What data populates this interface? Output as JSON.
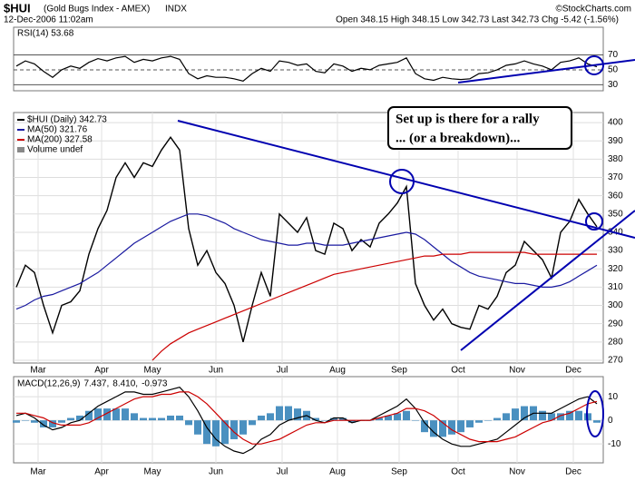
{
  "header": {
    "symbol": "$HUI",
    "name": "(Gold Bugs Index - AMEX)",
    "exchange": "INDX",
    "credit": "©StockCharts.com",
    "date": "12-Dec-2006 11:02am",
    "quote": "Open 348.15  High 348.15  Low 342.73  Last 342.73  Chg -5.42 (-1.56%)"
  },
  "annotation": {
    "line1": "Set up is there for a rally",
    "line2": "... (or a breakdown)..."
  },
  "chart_data": [
    {
      "type": "line",
      "title": "RSI(14) 53.68",
      "ylim": [
        22,
        107
      ],
      "yticks": [
        30,
        50,
        70
      ],
      "grid": true,
      "series": [
        {
          "color": "#000000",
          "values": [
            55,
            62,
            58,
            48,
            40,
            50,
            55,
            52,
            60,
            65,
            62,
            66,
            68,
            60,
            64,
            62,
            66,
            68,
            64,
            45,
            38,
            42,
            40,
            40,
            38,
            35,
            45,
            52,
            48,
            62,
            60,
            56,
            58,
            48,
            46,
            58,
            55,
            48,
            52,
            50,
            56,
            58,
            60,
            66,
            45,
            38,
            36,
            40,
            38,
            37,
            38,
            45,
            46,
            50,
            56,
            58,
            62,
            58,
            55,
            50,
            60,
            62,
            66,
            58,
            54
          ]
        }
      ]
    },
    {
      "type": "line",
      "ylim": [
        268.5,
        405.5
      ],
      "yticks": [
        270,
        280,
        290,
        300,
        310,
        320,
        330,
        340,
        350,
        360,
        370,
        380,
        390,
        400
      ],
      "grid": true,
      "xlim": [
        -0.3,
        64.7
      ],
      "xticks": [
        {
          "value": 2.4,
          "label": "Mar"
        },
        {
          "value": 9.4,
          "label": "Apr"
        },
        {
          "value": 15,
          "label": "May"
        },
        {
          "value": 22,
          "label": "Jun"
        },
        {
          "value": 29.3,
          "label": "Jul"
        },
        {
          "value": 35.4,
          "label": "Aug"
        },
        {
          "value": 42.2,
          "label": "Sep"
        },
        {
          "value": 48.7,
          "label": "Oct"
        },
        {
          "value": 55.2,
          "label": "Nov"
        },
        {
          "value": 61.4,
          "label": "Dec"
        }
      ],
      "extra_legend": "Volume undef",
      "series": [
        {
          "name": "$HUI (Daily) 342.73",
          "color": "#000000",
          "values": [
            310,
            322,
            318,
            300,
            285,
            300,
            302,
            308,
            328,
            342,
            352,
            370,
            378,
            370,
            378,
            376,
            385,
            392,
            385,
            342,
            322,
            330,
            318,
            312,
            300,
            280,
            300,
            318,
            305,
            350,
            345,
            340,
            348,
            330,
            328,
            345,
            342,
            330,
            336,
            332,
            345,
            350,
            356,
            365,
            312,
            300,
            292,
            298,
            290,
            288,
            287,
            300,
            298,
            305,
            318,
            322,
            335,
            330,
            325,
            315,
            340,
            346,
            358,
            350,
            343
          ]
        },
        {
          "name": "MA(50) 321.76",
          "color": "#1a1aa0",
          "values": [
            298,
            300,
            303,
            305,
            306,
            308,
            310,
            312,
            315,
            318,
            322,
            326,
            330,
            334,
            337,
            340,
            343,
            346,
            348,
            350,
            350,
            349,
            347,
            345,
            342,
            340,
            338,
            336,
            335,
            334,
            333,
            333,
            334,
            334,
            333,
            333,
            333,
            334,
            335,
            336,
            337,
            338,
            339,
            340,
            339,
            336,
            332,
            328,
            324,
            321,
            318,
            316,
            315,
            314,
            313,
            312,
            312,
            311,
            310,
            310,
            311,
            313,
            316,
            319,
            322
          ]
        },
        {
          "name": "MA(200) 327.58",
          "color": "#cc0000",
          "values": [
            null,
            null,
            null,
            null,
            null,
            null,
            null,
            null,
            null,
            null,
            null,
            null,
            null,
            null,
            null,
            270,
            275,
            279,
            282,
            285,
            287,
            289,
            291,
            293,
            295,
            297,
            299,
            301,
            303,
            305,
            307,
            309,
            311,
            313,
            315,
            317,
            318,
            319,
            320,
            321,
            322,
            323,
            324,
            325,
            326,
            327,
            327,
            328,
            328,
            328,
            329,
            329,
            329,
            329,
            329,
            329,
            329,
            328,
            328,
            328,
            328,
            328,
            328,
            328,
            328
          ]
        }
      ]
    },
    {
      "type": "line",
      "ylim": [
        -18,
        18.5
      ],
      "yticks": [
        -10,
        0,
        10
      ],
      "grid": true,
      "xlim": [
        -0.3,
        64.7
      ],
      "xticks": [
        {
          "value": 2.4,
          "label": "Mar"
        },
        {
          "value": 9.4,
          "label": "Apr"
        },
        {
          "value": 15,
          "label": "May"
        },
        {
          "value": 22,
          "label": "Jun"
        },
        {
          "value": 29.3,
          "label": "Jul"
        },
        {
          "value": 35.4,
          "label": "Aug"
        },
        {
          "value": 42.2,
          "label": "Sep"
        },
        {
          "value": 48.7,
          "label": "Oct"
        },
        {
          "value": 55.2,
          "label": "Nov"
        },
        {
          "value": 61.4,
          "label": "Dec"
        }
      ],
      "label_parts": [
        {
          "text": "MACD(12,26,9)",
          "color": "#000000"
        },
        {
          "text": "7.437,",
          "color": "#000000"
        },
        {
          "text": "8.410,",
          "color": "#cc0000"
        },
        {
          "text": "-0.973",
          "color": "#2e7fb8"
        }
      ],
      "histogram": {
        "color": "#4a90c0",
        "values": [
          -1,
          0,
          -1,
          -3,
          -3,
          -1,
          1,
          2,
          4,
          5,
          5,
          5,
          5,
          3,
          1,
          1,
          1,
          2,
          2,
          -2,
          -6,
          -10,
          -11,
          -10,
          -8,
          -6,
          -2,
          2,
          3,
          6,
          6,
          5,
          4,
          1,
          0,
          1,
          1,
          -1,
          0,
          0,
          1,
          2,
          3,
          4,
          0,
          -5,
          -7,
          -7,
          -6,
          -5,
          -3,
          -1,
          0,
          1,
          3,
          5,
          6,
          6,
          4,
          3,
          3,
          4,
          4,
          3,
          -1
        ]
      },
      "series": [
        {
          "color": "#000000",
          "values": [
            2,
            3,
            1,
            -2,
            -4,
            -3,
            -1,
            0,
            3,
            6,
            8,
            10,
            12,
            12,
            11,
            11,
            12,
            13,
            14,
            10,
            4,
            -3,
            -8,
            -11,
            -13,
            -14,
            -12,
            -8,
            -6,
            -2,
            0,
            1,
            2,
            0,
            -1,
            1,
            1,
            -1,
            0,
            0,
            2,
            4,
            6,
            9,
            5,
            -1,
            -5,
            -8,
            -10,
            -11,
            -11,
            -10,
            -9,
            -8,
            -5,
            -2,
            1,
            3,
            3,
            3,
            5,
            7,
            9,
            10,
            7
          ]
        },
        {
          "color": "#cc0000",
          "values": [
            3,
            3,
            2,
            1,
            -1,
            -2,
            -2,
            -2,
            -1,
            1,
            3,
            5,
            7,
            9,
            10,
            10,
            11,
            11,
            12,
            12,
            10,
            7,
            3,
            -1,
            -5,
            -8,
            -10,
            -10,
            -9,
            -8,
            -6,
            -4,
            -2,
            -1,
            -1,
            0,
            0,
            0,
            0,
            0,
            1,
            2,
            3,
            5,
            5,
            4,
            2,
            -1,
            -4,
            -6,
            -8,
            -9,
            -9,
            -9,
            -8,
            -7,
            -5,
            -3,
            -1,
            0,
            2,
            3,
            5,
            7,
            8
          ]
        }
      ]
    }
  ]
}
